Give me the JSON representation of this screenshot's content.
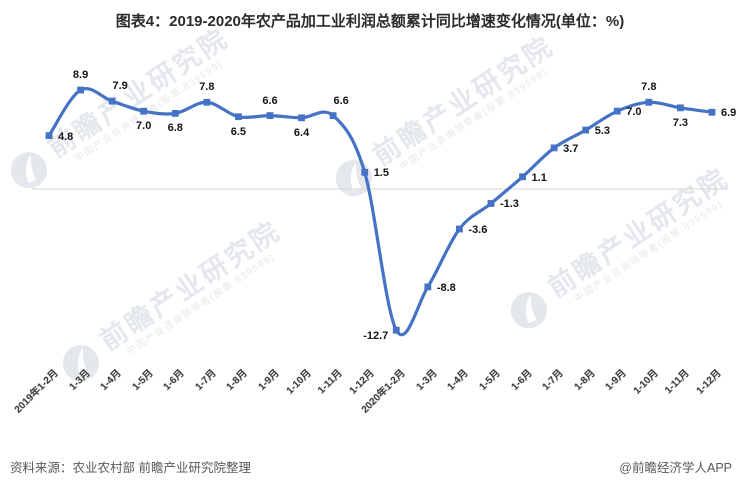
{
  "title": "图表4：2019-2020年农产品加工业利润总额累计同比增速变化情况(单位：%)",
  "chart_data": {
    "type": "line",
    "smooth": true,
    "marker": "square",
    "legend": false,
    "grid": "zero-line-only",
    "unit": "%",
    "line_color": "#4472C4",
    "zero_line_color": "#d6d6d6",
    "ylim": [
      -14,
      10
    ],
    "categories": [
      "2019年1-2月",
      "1-3月",
      "1-4月",
      "1-5月",
      "1-6月",
      "1-7月",
      "1-8月",
      "1-9月",
      "1-10月",
      "1-11月",
      "1-12月",
      "2020年1-2月",
      "1-3月",
      "1-4月",
      "1-5月",
      "1-6月",
      "1-7月",
      "1-8月",
      "1-9月",
      "1-10月",
      "1-11月",
      "1-12月"
    ],
    "values": [
      4.8,
      8.9,
      7.9,
      7.0,
      6.8,
      7.8,
      6.5,
      6.6,
      6.4,
      6.6,
      1.5,
      -12.7,
      -8.8,
      -3.6,
      -1.3,
      1.1,
      3.7,
      5.3,
      7.0,
      7.8,
      7.3,
      6.9
    ]
  },
  "watermark": {
    "text": "前瞻产业研究院",
    "subtext": "中国产业咨询领导者(股票:839599)",
    "color": "#e4e7ec"
  },
  "footer": {
    "source": "资料来源：农业农村部 前瞻产业研究院整理",
    "credit": "@前瞻经济学人APP"
  }
}
